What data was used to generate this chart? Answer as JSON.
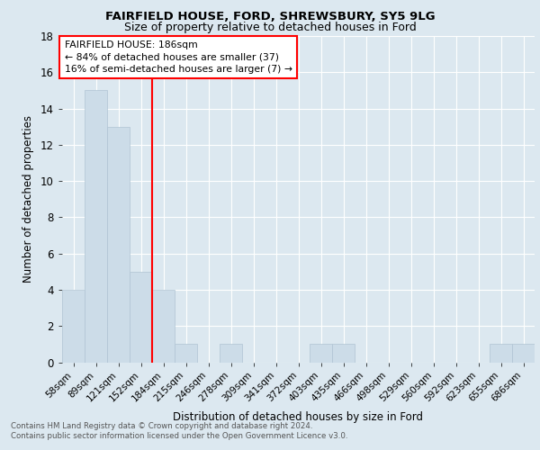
{
  "title1": "FAIRFIELD HOUSE, FORD, SHREWSBURY, SY5 9LG",
  "title2": "Size of property relative to detached houses in Ford",
  "xlabel": "Distribution of detached houses by size in Ford",
  "ylabel": "Number of detached properties",
  "bin_labels": [
    "58sqm",
    "89sqm",
    "121sqm",
    "152sqm",
    "184sqm",
    "215sqm",
    "246sqm",
    "278sqm",
    "309sqm",
    "341sqm",
    "372sqm",
    "403sqm",
    "435sqm",
    "466sqm",
    "498sqm",
    "529sqm",
    "560sqm",
    "592sqm",
    "623sqm",
    "655sqm",
    "686sqm"
  ],
  "bin_counts": [
    4,
    15,
    13,
    5,
    4,
    1,
    0,
    1,
    0,
    0,
    0,
    1,
    1,
    0,
    0,
    0,
    0,
    0,
    0,
    1,
    1
  ],
  "bar_color": "#ccdce8",
  "bar_edge_color": "#b0c4d4",
  "red_line_index": 4,
  "annotation_lines": [
    "FAIRFIELD HOUSE: 186sqm",
    "← 84% of detached houses are smaller (37)",
    "16% of semi-detached houses are larger (7) →"
  ],
  "footnote1": "Contains HM Land Registry data © Crown copyright and database right 2024.",
  "footnote2": "Contains public sector information licensed under the Open Government Licence v3.0.",
  "ylim": [
    0,
    18
  ],
  "yticks": [
    0,
    2,
    4,
    6,
    8,
    10,
    12,
    14,
    16,
    18
  ],
  "bg_color": "#dce8f0",
  "title1_fontsize": 9.5,
  "title2_fontsize": 9.0,
  "ylabel_fontsize": 8.5,
  "xlabel_fontsize": 8.5,
  "xtick_fontsize": 7.5,
  "ytick_fontsize": 8.5,
  "ann_fontsize": 7.8,
  "footnote_fontsize": 6.2
}
